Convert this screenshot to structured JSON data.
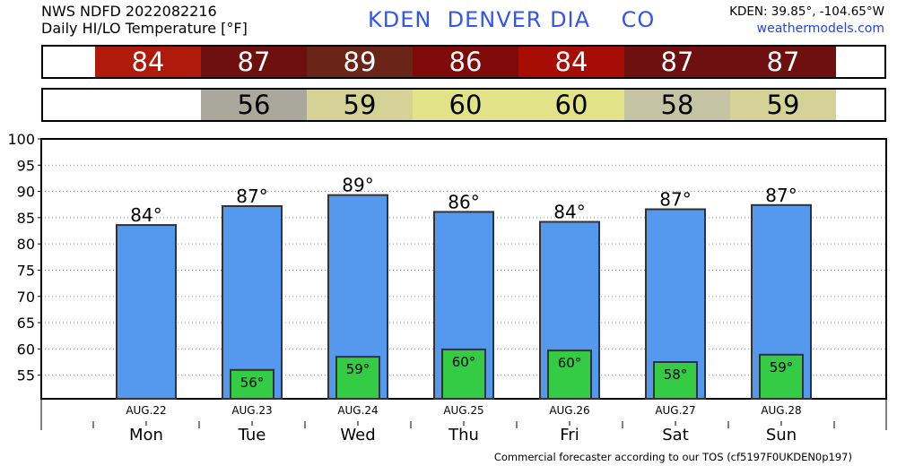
{
  "header": {
    "line1": "NWS NDFD 2022082216",
    "line2": "Daily HI/LO Temperature [°F]",
    "station": "KDEN  DENVER DIA    CO",
    "coords": "KDEN: 39.85°, -104.65°W",
    "site": "weathermodels.com"
  },
  "hi_row": [
    {
      "value": "84",
      "color": "#b01a0a"
    },
    {
      "value": "87",
      "color": "#6e1010"
    },
    {
      "value": "89",
      "color": "#6a2418"
    },
    {
      "value": "86",
      "color": "#7e0a0a"
    },
    {
      "value": "84",
      "color": "#a80d05"
    },
    {
      "value": "87",
      "color": "#6e1010"
    },
    {
      "value": "87",
      "color": "#6e1010"
    }
  ],
  "lo_row": [
    {
      "value": "",
      "color": "#ffffff"
    },
    {
      "value": "56",
      "color": "#aaa89c"
    },
    {
      "value": "59",
      "color": "#d4d296"
    },
    {
      "value": "60",
      "color": "#e2e288"
    },
    {
      "value": "60",
      "color": "#e2e288"
    },
    {
      "value": "58",
      "color": "#c4c4a4"
    },
    {
      "value": "59",
      "color": "#d4d296"
    }
  ],
  "chart_data": {
    "type": "bar",
    "categories": [
      "Mon",
      "Tue",
      "Wed",
      "Thu",
      "Fri",
      "Sat",
      "Sun"
    ],
    "dates": [
      "AUG.22",
      "AUG.23",
      "AUG.24",
      "AUG.25",
      "AUG.26",
      "AUG.27",
      "AUG.28"
    ],
    "series": [
      {
        "name": "HI",
        "values": [
          83.6,
          87.2,
          89.3,
          86.1,
          84.2,
          86.6,
          87.4
        ],
        "labels": [
          "84°",
          "87°",
          "89°",
          "86°",
          "84°",
          "87°",
          "87°"
        ],
        "color": "#5599ee"
      },
      {
        "name": "LO",
        "values": [
          null,
          56.0,
          58.5,
          59.9,
          59.7,
          57.5,
          58.9
        ],
        "labels": [
          "",
          "56°",
          "59°",
          "60°",
          "60°",
          "58°",
          "59°"
        ],
        "color": "#33cc44"
      }
    ],
    "yticks": [
      55,
      60,
      65,
      70,
      75,
      80,
      85,
      90,
      95,
      100
    ],
    "ylim": [
      50.5,
      100
    ],
    "grid": true
  },
  "footer": "Commercial forecaster according to our TOS (cf5197F0UKDEN0p197)"
}
